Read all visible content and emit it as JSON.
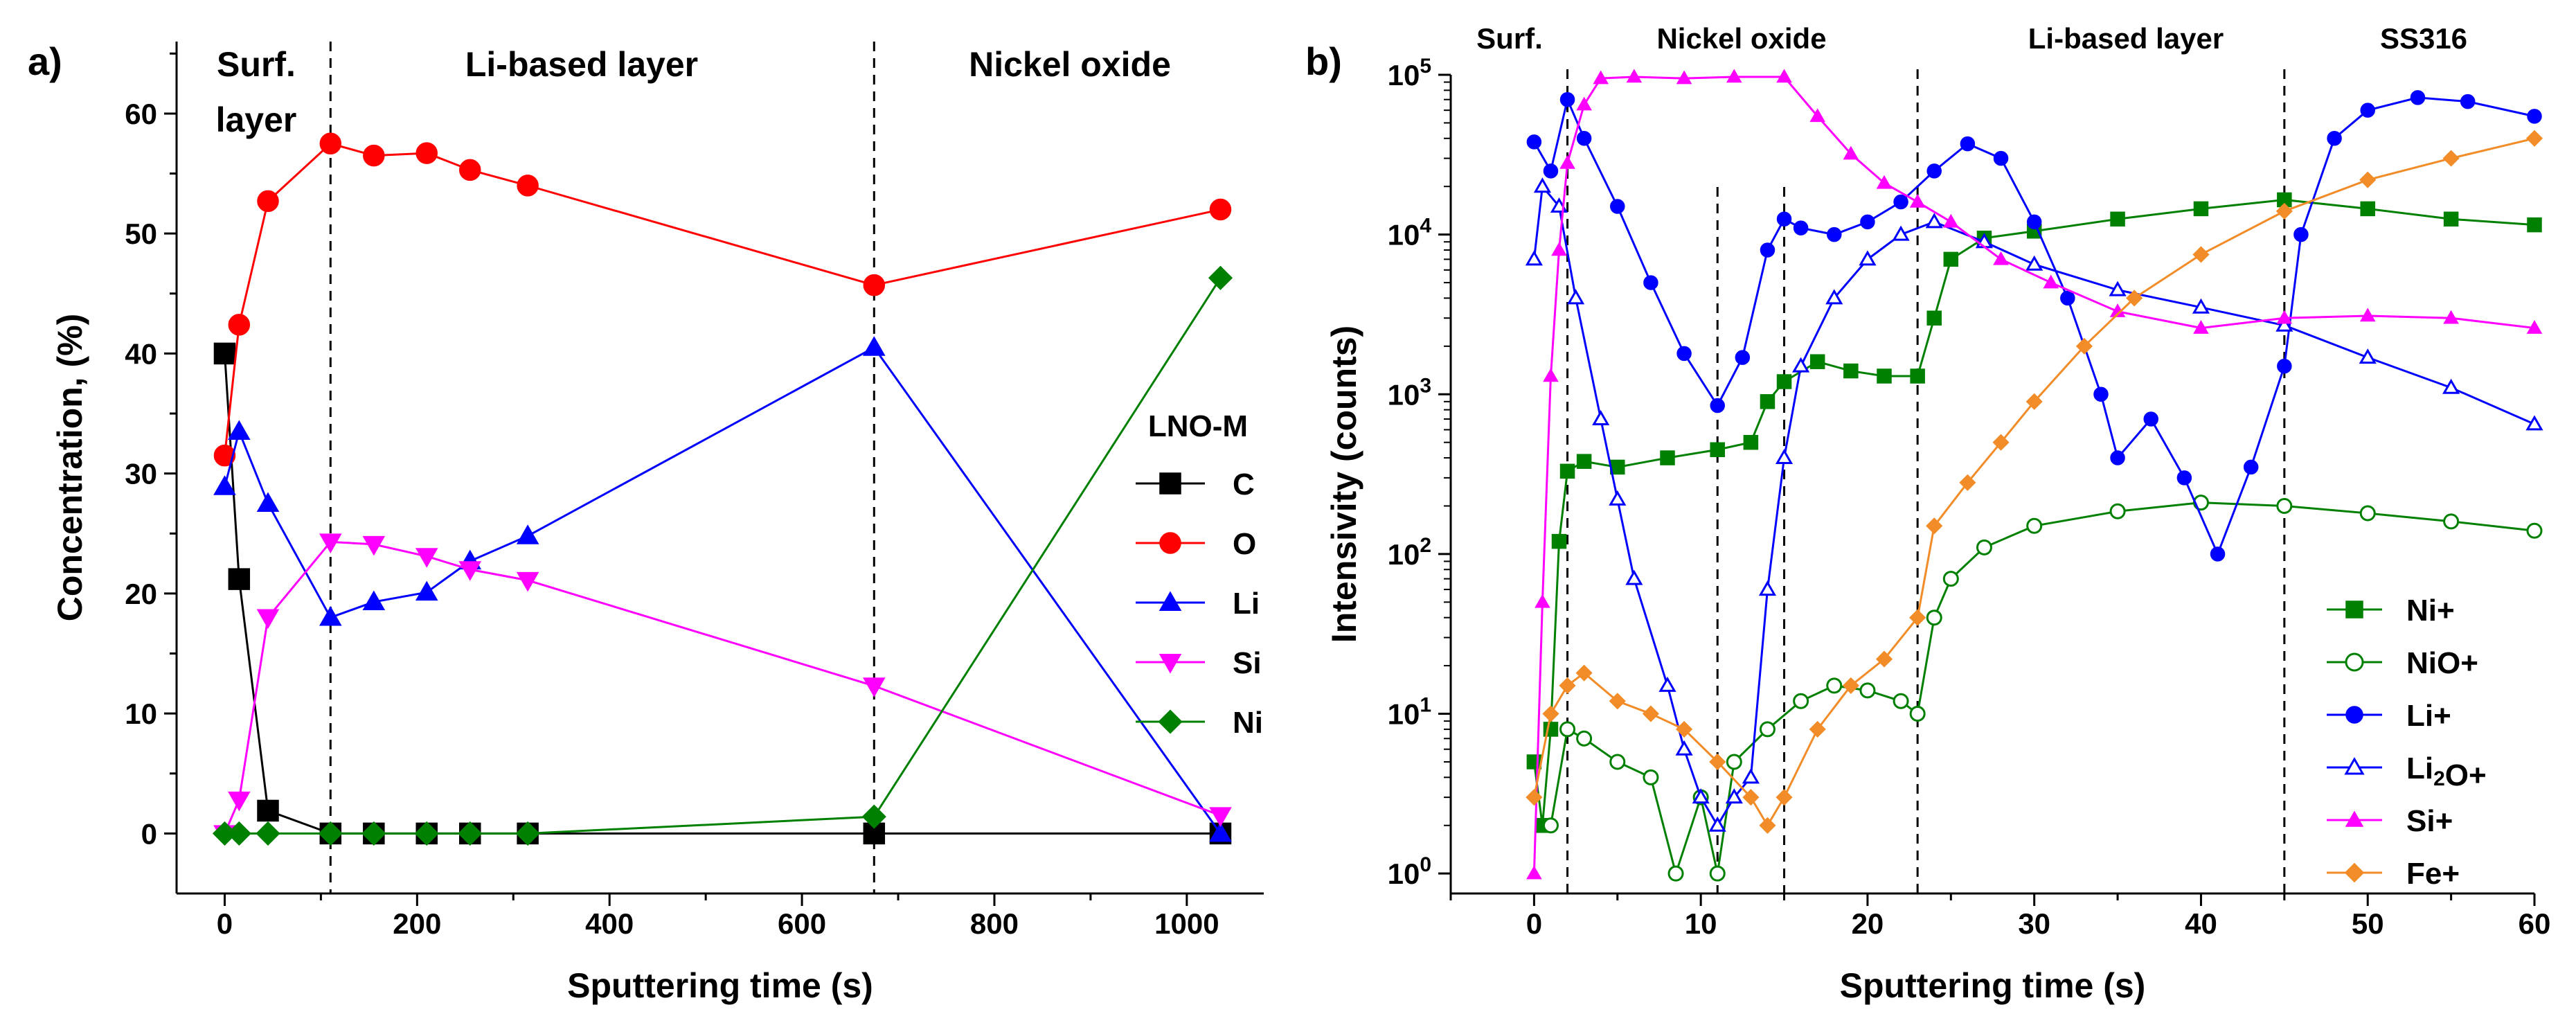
{
  "chart_data": [
    {
      "type": "line",
      "panel_label": "a)",
      "xlabel": "Sputtering time (s)",
      "ylabel": "Concentration, (%)",
      "xlim": [
        -50,
        1080
      ],
      "ylim": [
        -5,
        66
      ],
      "xticks": [
        0,
        200,
        400,
        600,
        800,
        1000
      ],
      "yticks": [
        0,
        10,
        20,
        30,
        40,
        50,
        60
      ],
      "x": [
        0,
        15,
        45,
        110,
        155,
        210,
        255,
        315,
        675,
        1035
      ],
      "dividers": [
        110,
        675
      ],
      "regions": [
        {
          "label_lines": [
            "Surf.",
            "layer"
          ]
        },
        {
          "label_lines": [
            "Li-based layer"
          ]
        },
        {
          "label_lines": [
            "Nickel oxide"
          ]
        }
      ],
      "legend_title": "LNO-M",
      "legend_position": "right",
      "grid": false,
      "series": [
        {
          "name": "C",
          "color": "#000000",
          "marker": "square",
          "values": [
            40,
            21.2,
            1.9,
            0,
            0,
            0,
            0,
            0,
            0,
            0
          ]
        },
        {
          "name": "O",
          "color": "#ff0000",
          "marker": "circle",
          "values": [
            31.5,
            42.4,
            52.7,
            57.5,
            56.5,
            56.7,
            55.3,
            54,
            45.7,
            52
          ]
        },
        {
          "name": "Li",
          "color": "#0000ff",
          "marker": "triangle-up",
          "values": [
            28.9,
            33.5,
            27.5,
            18,
            19.3,
            20.1,
            22.7,
            24.8,
            40.5,
            0
          ]
        },
        {
          "name": "Si",
          "color": "#ff00ff",
          "marker": "triangle-down",
          "values": [
            0,
            2.8,
            18,
            24.3,
            24.1,
            23.1,
            22,
            21.1,
            12.3,
            1.5
          ]
        },
        {
          "name": "Ni",
          "color": "#008000",
          "marker": "diamond",
          "values": [
            0,
            0,
            0,
            0,
            0,
            0,
            0,
            0,
            1.4,
            46.3
          ]
        }
      ]
    },
    {
      "type": "scatter",
      "panel_label": "b)",
      "xlabel": "Sputtering time (s)",
      "ylabel": "Intensivity (counts)",
      "yscale": "log",
      "xlim": [
        -5,
        60
      ],
      "ylim": [
        0.75,
        100000
      ],
      "xticks": [
        0,
        10,
        20,
        30,
        40,
        50,
        60
      ],
      "yticks": [
        {
          "value": 1,
          "label": "10",
          "exp": "0"
        },
        {
          "value": 10,
          "label": "10",
          "exp": "1"
        },
        {
          "value": 100,
          "label": "10",
          "exp": "2"
        },
        {
          "value": 1000,
          "label": "10",
          "exp": "3"
        },
        {
          "value": 10000,
          "label": "10",
          "exp": "4"
        },
        {
          "value": 100000,
          "label": "10",
          "exp": "5"
        }
      ],
      "dividers": [
        2,
        23,
        45
      ],
      "inner_dividers": [
        11,
        15
      ],
      "regions": [
        {
          "label": "Surf."
        },
        {
          "label": "Nickel oxide"
        },
        {
          "label": "Li-based layer"
        },
        {
          "label": "SS316"
        }
      ],
      "legend_position": "bottom-right",
      "grid": false,
      "series": [
        {
          "name": "Ni+",
          "name_parts": [
            {
              "text": "Ni+",
              "sub": false
            }
          ],
          "color": "#008000",
          "marker": "square",
          "points": [
            [
              0,
              5
            ],
            [
              0.5,
              2
            ],
            [
              1,
              8
            ],
            [
              1.5,
              120
            ],
            [
              2,
              330
            ],
            [
              3,
              380
            ],
            [
              5,
              350
            ],
            [
              8,
              400
            ],
            [
              11,
              450
            ],
            [
              13,
              500
            ],
            [
              14,
              900
            ],
            [
              15,
              1200
            ],
            [
              17,
              1600
            ],
            [
              19,
              1400
            ],
            [
              21,
              1300
            ],
            [
              23,
              1300
            ],
            [
              24,
              3000
            ],
            [
              25,
              7000
            ],
            [
              27,
              9500
            ],
            [
              30,
              10500
            ],
            [
              35,
              12500
            ],
            [
              40,
              14500
            ],
            [
              45,
              16500
            ],
            [
              50,
              14500
            ],
            [
              55,
              12500
            ],
            [
              60,
              11500
            ]
          ]
        },
        {
          "name": "NiO+",
          "name_parts": [
            {
              "text": "NiO+",
              "sub": false
            }
          ],
          "color": "#008000",
          "marker": "circle-open",
          "points": [
            [
              1,
              2
            ],
            [
              2,
              8
            ],
            [
              3,
              7
            ],
            [
              5,
              5
            ],
            [
              7,
              4
            ],
            [
              8.5,
              1
            ],
            [
              10,
              3
            ],
            [
              11,
              1
            ],
            [
              12,
              5
            ],
            [
              14,
              8
            ],
            [
              16,
              12
            ],
            [
              18,
              15
            ],
            [
              20,
              14
            ],
            [
              22,
              12
            ],
            [
              23,
              10
            ],
            [
              24,
              40
            ],
            [
              25,
              70
            ],
            [
              27,
              110
            ],
            [
              30,
              150
            ],
            [
              35,
              185
            ],
            [
              40,
              210
            ],
            [
              45,
              200
            ],
            [
              50,
              180
            ],
            [
              55,
              160
            ],
            [
              60,
              140
            ]
          ]
        },
        {
          "name": "Li+",
          "name_parts": [
            {
              "text": "Li+",
              "sub": false
            }
          ],
          "color": "#0000ff",
          "marker": "circle",
          "points": [
            [
              0,
              38000
            ],
            [
              1,
              25000
            ],
            [
              2,
              70000
            ],
            [
              3,
              40000
            ],
            [
              5,
              15000
            ],
            [
              7,
              5000
            ],
            [
              9,
              1800
            ],
            [
              11,
              850
            ],
            [
              12.5,
              1700
            ],
            [
              14,
              8000
            ],
            [
              15,
              12500
            ],
            [
              16,
              11000
            ],
            [
              18,
              10000
            ],
            [
              20,
              12000
            ],
            [
              22,
              16000
            ],
            [
              24,
              25000
            ],
            [
              26,
              37000
            ],
            [
              28,
              30000
            ],
            [
              30,
              12000
            ],
            [
              32,
              4000
            ],
            [
              34,
              1000
            ],
            [
              35,
              400
            ],
            [
              37,
              700
            ],
            [
              39,
              300
            ],
            [
              41,
              100
            ],
            [
              43,
              350
            ],
            [
              45,
              1500
            ],
            [
              46,
              10000
            ],
            [
              48,
              40000
            ],
            [
              50,
              60000
            ],
            [
              53,
              72000
            ],
            [
              56,
              68000
            ],
            [
              60,
              55000
            ]
          ]
        },
        {
          "name": "Li2O+",
          "name_parts": [
            {
              "text": "Li",
              "sub": false
            },
            {
              "text": "2",
              "sub": true
            },
            {
              "text": "O+",
              "sub": false
            }
          ],
          "color": "#0000ff",
          "marker": "triangle-open",
          "points": [
            [
              0,
              7000
            ],
            [
              0.5,
              20000
            ],
            [
              1.5,
              15000
            ],
            [
              2.5,
              4000
            ],
            [
              4,
              700
            ],
            [
              5,
              220
            ],
            [
              6,
              70
            ],
            [
              8,
              15
            ],
            [
              9,
              6
            ],
            [
              10,
              3
            ],
            [
              11,
              2
            ],
            [
              12,
              3
            ],
            [
              13,
              4
            ],
            [
              14,
              60
            ],
            [
              15,
              400
            ],
            [
              16,
              1500
            ],
            [
              18,
              4000
            ],
            [
              20,
              7000
            ],
            [
              22,
              10000
            ],
            [
              24,
              12000
            ],
            [
              27,
              9000
            ],
            [
              30,
              6500
            ],
            [
              35,
              4500
            ],
            [
              40,
              3500
            ],
            [
              45,
              2700
            ],
            [
              50,
              1700
            ],
            [
              55,
              1100
            ],
            [
              60,
              650
            ]
          ]
        },
        {
          "name": "Si+",
          "name_parts": [
            {
              "text": "Si+",
              "sub": false
            }
          ],
          "color": "#ff00ff",
          "marker": "triangle",
          "points": [
            [
              0,
              1
            ],
            [
              0.5,
              50
            ],
            [
              1,
              1300
            ],
            [
              1.5,
              8000
            ],
            [
              2,
              28000
            ],
            [
              3,
              65000
            ],
            [
              4,
              95000
            ],
            [
              6,
              97000
            ],
            [
              9,
              95000
            ],
            [
              12,
              97000
            ],
            [
              15,
              97000
            ],
            [
              17,
              55000
            ],
            [
              19,
              32000
            ],
            [
              21,
              21000
            ],
            [
              23,
              16000
            ],
            [
              25,
              12000
            ],
            [
              28,
              7000
            ],
            [
              31,
              5000
            ],
            [
              35,
              3300
            ],
            [
              40,
              2600
            ],
            [
              45,
              3000
            ],
            [
              50,
              3100
            ],
            [
              55,
              3000
            ],
            [
              60,
              2600
            ]
          ]
        },
        {
          "name": "Fe+",
          "name_parts": [
            {
              "text": "Fe+",
              "sub": false
            }
          ],
          "color": "#f28c28",
          "marker": "diamond",
          "points": [
            [
              0,
              3
            ],
            [
              1,
              10
            ],
            [
              2,
              15
            ],
            [
              3,
              18
            ],
            [
              5,
              12
            ],
            [
              7,
              10
            ],
            [
              9,
              8
            ],
            [
              11,
              5
            ],
            [
              13,
              3
            ],
            [
              14,
              2
            ],
            [
              15,
              3
            ],
            [
              17,
              8
            ],
            [
              19,
              15
            ],
            [
              21,
              22
            ],
            [
              23,
              40
            ],
            [
              24,
              150
            ],
            [
              26,
              280
            ],
            [
              28,
              500
            ],
            [
              30,
              900
            ],
            [
              33,
              2000
            ],
            [
              36,
              4000
            ],
            [
              40,
              7500
            ],
            [
              45,
              14000
            ],
            [
              50,
              22000
            ],
            [
              55,
              30000
            ],
            [
              60,
              40000
            ]
          ]
        }
      ]
    }
  ]
}
